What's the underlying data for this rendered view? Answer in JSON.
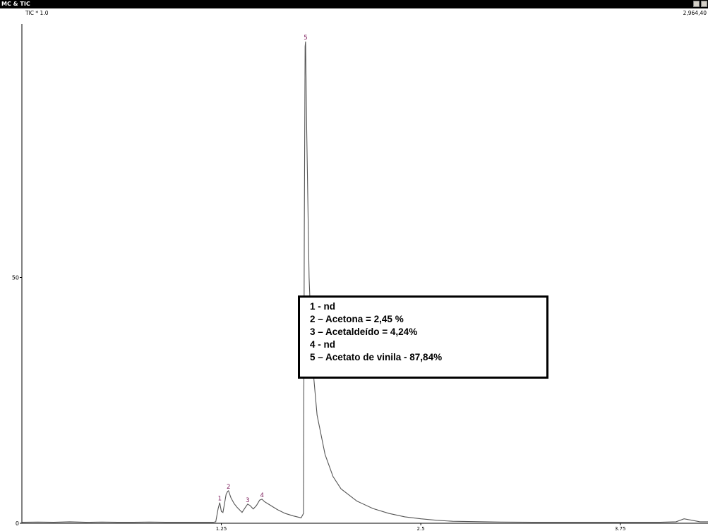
{
  "window": {
    "title": "MC & TIC"
  },
  "chart_data": {
    "type": "line",
    "title": "",
    "xlabel": "",
    "ylabel": "",
    "series_label": "TIC * 1.0",
    "max_intensity_label": "2,964,40",
    "xlim": [
      0,
      4.3
    ],
    "ylim": [
      0,
      100
    ],
    "x_ticks": [
      {
        "value": 1.25,
        "label": "1.25"
      },
      {
        "value": 2.5,
        "label": "2.5"
      },
      {
        "value": 3.75,
        "label": "3.75"
      }
    ],
    "y_ticks": [
      {
        "value": 0,
        "label": "0"
      },
      {
        "value": 50,
        "label": "50"
      }
    ],
    "peaks": [
      {
        "label": "1",
        "x": 1.24,
        "height": 4.2
      },
      {
        "label": "2",
        "x": 1.295,
        "height": 6.6
      },
      {
        "label": "3",
        "x": 1.415,
        "height": 3.9
      },
      {
        "label": "4",
        "x": 1.505,
        "height": 4.9
      },
      {
        "label": "5",
        "x": 1.778,
        "height": 98.0
      }
    ],
    "series": [
      {
        "x": [
          0,
          0.1,
          0.2,
          0.3,
          0.4,
          0.5,
          0.6,
          0.7,
          0.8,
          0.9,
          1.0,
          1.1,
          1.2,
          1.215,
          1.23,
          1.24,
          1.25,
          1.26,
          1.27,
          1.28,
          1.29,
          1.295,
          1.31,
          1.33,
          1.35,
          1.38,
          1.4,
          1.415,
          1.43,
          1.45,
          1.47,
          1.49,
          1.505,
          1.52,
          1.55,
          1.6,
          1.65,
          1.7,
          1.75,
          1.765,
          1.77,
          1.775,
          1.778,
          1.785,
          1.8,
          1.82,
          1.85,
          1.9,
          1.95,
          2.0,
          2.1,
          2.2,
          2.3,
          2.4,
          2.5,
          2.6,
          2.7,
          2.8,
          2.9,
          3.0,
          3.2,
          3.4,
          3.6,
          3.8,
          4.0,
          4.1,
          4.15,
          4.2,
          4.25,
          4.3
        ],
        "y": [
          0.2,
          0.25,
          0.2,
          0.3,
          0.2,
          0.25,
          0.2,
          0.2,
          0.25,
          0.2,
          0.2,
          0.2,
          0.2,
          0.3,
          3.0,
          4.2,
          2.4,
          2.2,
          4.0,
          5.9,
          6.5,
          6.6,
          5.2,
          4.0,
          3.2,
          2.2,
          3.2,
          3.9,
          3.6,
          2.9,
          3.6,
          4.7,
          4.9,
          4.4,
          3.8,
          2.8,
          2.0,
          1.5,
          1.1,
          2.0,
          60.0,
          97.0,
          98.0,
          80.0,
          50.0,
          33.0,
          22.0,
          14.0,
          9.5,
          7.0,
          4.5,
          3.0,
          2.0,
          1.3,
          0.9,
          0.6,
          0.4,
          0.35,
          0.3,
          0.25,
          0.2,
          0.2,
          0.2,
          0.2,
          0.2,
          0.3,
          0.9,
          0.6,
          0.3,
          0.3
        ]
      }
    ],
    "grid": false
  },
  "legend_box": {
    "lines": [
      "1 - nd",
      "2 – Acetona = 2,45 %",
      "3 – Acetaldeído = 4,24%",
      "4 - nd",
      "5 – Acetato de vinila - 87,84%"
    ]
  },
  "colors": {
    "trace": "#555555",
    "peak_label": "#7a1a5a",
    "axis": "#000000"
  }
}
